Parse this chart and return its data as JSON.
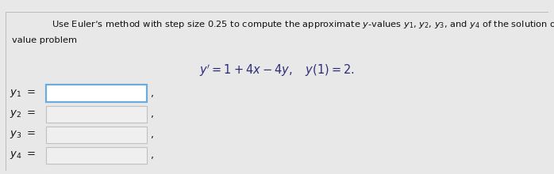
{
  "bg_color": "#e8e8e8",
  "panel_color": "#f2f2f2",
  "top_bar_color": "#3a56a0",
  "text_color": "#111111",
  "equation_color": "#2c2c7a",
  "labels": [
    "$y_1$",
    "$y_2$",
    "$y_3$",
    "$y_4$"
  ],
  "active_box_color": "#ffffff",
  "active_box_border": "#6aace0",
  "inactive_box_color": "#efefef",
  "inactive_box_border": "#c0c0c0",
  "font_size_header": 8.2,
  "font_size_eq": 10.5,
  "font_size_label": 9.5
}
